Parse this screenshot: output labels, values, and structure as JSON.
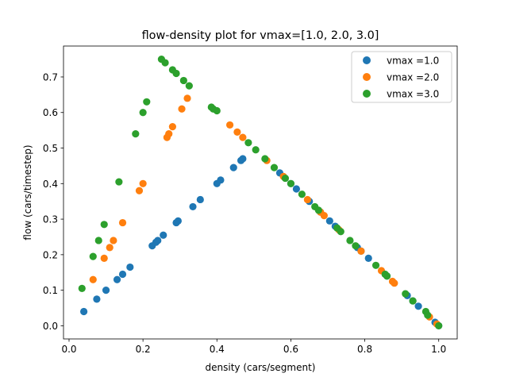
{
  "chart_data": {
    "type": "scatter",
    "title": "flow-density plot for vmax=[1.0, 2.0, 3.0]",
    "xlabel": "density (cars/segment)",
    "ylabel": "flow (cars/timestep)",
    "xlim": [
      -0.015,
      1.05
    ],
    "ylim": [
      -0.037,
      0.787
    ],
    "xticks": [
      0.0,
      0.2,
      0.4,
      0.6,
      0.8,
      1.0
    ],
    "xtick_labels": [
      "0.0",
      "0.2",
      "0.4",
      "0.6",
      "0.8",
      "1.0"
    ],
    "yticks": [
      0.0,
      0.1,
      0.2,
      0.3,
      0.4,
      0.5,
      0.6,
      0.7
    ],
    "ytick_labels": [
      "0.0",
      "0.1",
      "0.2",
      "0.3",
      "0.4",
      "0.5",
      "0.6",
      "0.7"
    ],
    "grid": false,
    "legend_position": "top-right",
    "series": [
      {
        "name": "vmax =1.0",
        "color": "#1f77b4",
        "points": [
          [
            0.04,
            0.04
          ],
          [
            0.075,
            0.075
          ],
          [
            0.1,
            0.1
          ],
          [
            0.13,
            0.13
          ],
          [
            0.145,
            0.145
          ],
          [
            0.165,
            0.165
          ],
          [
            0.225,
            0.225
          ],
          [
            0.235,
            0.235
          ],
          [
            0.24,
            0.24
          ],
          [
            0.255,
            0.255
          ],
          [
            0.29,
            0.29
          ],
          [
            0.295,
            0.295
          ],
          [
            0.335,
            0.335
          ],
          [
            0.355,
            0.355
          ],
          [
            0.4,
            0.4
          ],
          [
            0.41,
            0.41
          ],
          [
            0.445,
            0.445
          ],
          [
            0.465,
            0.465
          ],
          [
            0.47,
            0.47
          ],
          [
            0.57,
            0.43
          ],
          [
            0.6,
            0.4
          ],
          [
            0.615,
            0.385
          ],
          [
            0.65,
            0.35
          ],
          [
            0.68,
            0.32
          ],
          [
            0.705,
            0.295
          ],
          [
            0.72,
            0.28
          ],
          [
            0.78,
            0.22
          ],
          [
            0.79,
            0.21
          ],
          [
            0.81,
            0.19
          ],
          [
            0.86,
            0.14
          ],
          [
            0.915,
            0.085
          ],
          [
            0.93,
            0.07
          ],
          [
            0.945,
            0.055
          ],
          [
            0.99,
            0.01
          ],
          [
            1.0,
            0.0
          ]
        ]
      },
      {
        "name": "vmax =2.0",
        "color": "#ff7f0e",
        "points": [
          [
            0.065,
            0.13
          ],
          [
            0.095,
            0.19
          ],
          [
            0.11,
            0.22
          ],
          [
            0.12,
            0.24
          ],
          [
            0.145,
            0.29
          ],
          [
            0.19,
            0.38
          ],
          [
            0.2,
            0.4
          ],
          [
            0.265,
            0.53
          ],
          [
            0.27,
            0.54
          ],
          [
            0.28,
            0.56
          ],
          [
            0.305,
            0.61
          ],
          [
            0.32,
            0.64
          ],
          [
            0.435,
            0.565
          ],
          [
            0.455,
            0.545
          ],
          [
            0.47,
            0.53
          ],
          [
            0.535,
            0.465
          ],
          [
            0.58,
            0.42
          ],
          [
            0.645,
            0.355
          ],
          [
            0.68,
            0.32
          ],
          [
            0.69,
            0.31
          ],
          [
            0.73,
            0.27
          ],
          [
            0.79,
            0.21
          ],
          [
            0.845,
            0.155
          ],
          [
            0.875,
            0.125
          ],
          [
            0.88,
            0.12
          ],
          [
            0.975,
            0.025
          ],
          [
            0.995,
            0.005
          ]
        ]
      },
      {
        "name": "vmax =3.0",
        "color": "#2ca02c",
        "points": [
          [
            0.035,
            0.105
          ],
          [
            0.065,
            0.195
          ],
          [
            0.08,
            0.24
          ],
          [
            0.095,
            0.285
          ],
          [
            0.135,
            0.405
          ],
          [
            0.18,
            0.54
          ],
          [
            0.2,
            0.6
          ],
          [
            0.21,
            0.63
          ],
          [
            0.25,
            0.75
          ],
          [
            0.26,
            0.74
          ],
          [
            0.28,
            0.72
          ],
          [
            0.29,
            0.71
          ],
          [
            0.31,
            0.69
          ],
          [
            0.325,
            0.675
          ],
          [
            0.385,
            0.615
          ],
          [
            0.39,
            0.61
          ],
          [
            0.4,
            0.605
          ],
          [
            0.485,
            0.515
          ],
          [
            0.505,
            0.495
          ],
          [
            0.53,
            0.47
          ],
          [
            0.555,
            0.445
          ],
          [
            0.585,
            0.415
          ],
          [
            0.6,
            0.4
          ],
          [
            0.63,
            0.37
          ],
          [
            0.665,
            0.335
          ],
          [
            0.675,
            0.325
          ],
          [
            0.725,
            0.275
          ],
          [
            0.735,
            0.265
          ],
          [
            0.76,
            0.24
          ],
          [
            0.775,
            0.225
          ],
          [
            0.83,
            0.17
          ],
          [
            0.855,
            0.145
          ],
          [
            0.86,
            0.14
          ],
          [
            0.91,
            0.09
          ],
          [
            0.93,
            0.07
          ],
          [
            0.965,
            0.04
          ],
          [
            0.97,
            0.03
          ],
          [
            1.0,
            0.0
          ]
        ]
      }
    ]
  }
}
